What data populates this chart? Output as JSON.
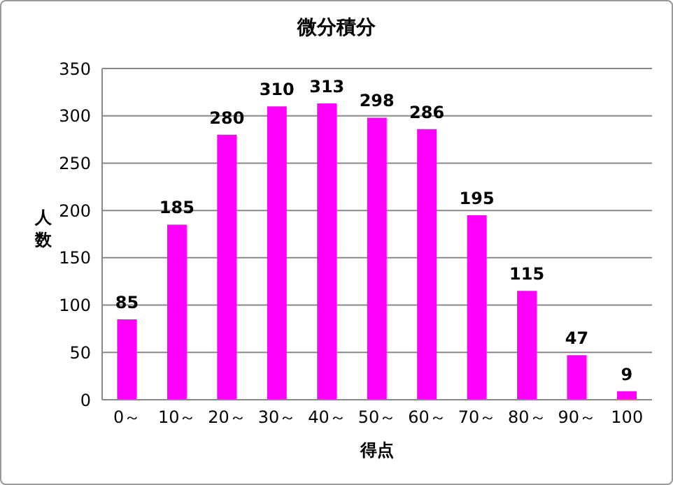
{
  "chart_data": {
    "type": "bar",
    "title": "微分積分",
    "xlabel": "得点",
    "ylabel": "人数",
    "categories": [
      "0～",
      "10～",
      "20～",
      "30～",
      "40～",
      "50～",
      "60～",
      "70～",
      "80～",
      "90～",
      "100"
    ],
    "values": [
      85,
      185,
      280,
      310,
      313,
      298,
      286,
      195,
      115,
      47,
      9
    ],
    "color": "#ff00ff",
    "ylim": [
      0,
      350
    ],
    "yticks": [
      0,
      50,
      100,
      150,
      200,
      250,
      300,
      350
    ],
    "grid": "y",
    "data_labels": true,
    "legend": false
  }
}
